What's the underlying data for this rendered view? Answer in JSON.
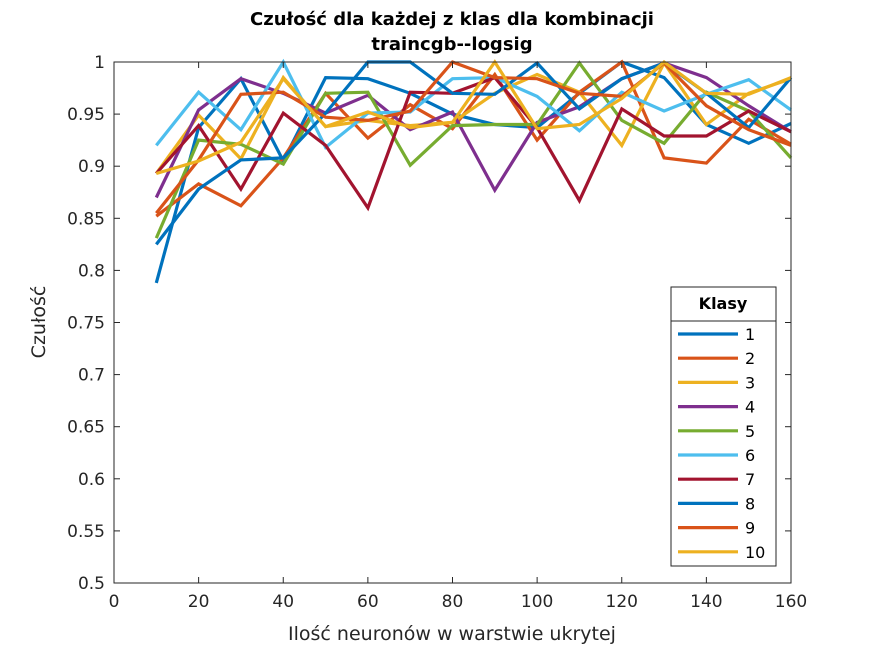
{
  "chart_data": {
    "type": "line",
    "title": [
      "Czułość dla każdej z klas dla kombinacji",
      "traincgb--logsig"
    ],
    "xlabel": "Ilość neuronów w warstwie ukrytej",
    "ylabel": "Czułość",
    "xlim": [
      0,
      160
    ],
    "ylim": [
      0.5,
      1
    ],
    "xticks": [
      "0",
      "20",
      "40",
      "60",
      "80",
      "100",
      "120",
      "140",
      "160"
    ],
    "yticks": [
      "0.5",
      "0.55",
      "0.6",
      "0.65",
      "0.7",
      "0.75",
      "0.8",
      "0.85",
      "0.9",
      "0.95",
      "1"
    ],
    "grid": false,
    "legend": {
      "title": "Klasy",
      "placement": "lower-right"
    },
    "x": [
      10,
      20,
      30,
      40,
      50,
      60,
      70,
      80,
      90,
      100,
      110,
      120,
      130,
      140,
      150,
      160
    ],
    "series": [
      {
        "name": "1",
        "color": "#0072BD",
        "values": [
          0.788,
          0.937,
          0.984,
          0.905,
          0.985,
          0.984,
          0.97,
          0.95,
          0.94,
          0.937,
          0.97,
          1.0,
          0.985,
          0.94,
          0.922,
          0.941
        ]
      },
      {
        "name": "2",
        "color": "#D95319",
        "values": [
          0.852,
          0.883,
          0.862,
          0.908,
          0.97,
          0.927,
          0.959,
          0.936,
          0.988,
          0.925,
          0.971,
          1.0,
          0.908,
          0.903,
          0.945,
          0.921
        ]
      },
      {
        "name": "3",
        "color": "#EDB120",
        "values": [
          0.893,
          0.949,
          0.907,
          0.985,
          0.938,
          0.944,
          0.939,
          0.942,
          0.97,
          0.988,
          0.971,
          0.92,
          0.999,
          0.94,
          0.97,
          0.984
        ]
      },
      {
        "name": "4",
        "color": "#7E2F8E",
        "values": [
          0.87,
          0.954,
          0.984,
          0.97,
          0.951,
          0.968,
          0.935,
          0.952,
          0.877,
          0.942,
          0.957,
          0.984,
          0.999,
          0.985,
          0.958,
          0.933
        ]
      },
      {
        "name": "5",
        "color": "#77AC30",
        "values": [
          0.831,
          0.925,
          0.921,
          0.902,
          0.97,
          0.971,
          0.901,
          0.939,
          0.94,
          0.94,
          0.999,
          0.944,
          0.922,
          0.971,
          0.953,
          0.908
        ]
      },
      {
        "name": "6",
        "color": "#4DBEEE",
        "values": [
          0.92,
          0.971,
          0.935,
          1.0,
          0.918,
          0.951,
          0.952,
          0.984,
          0.985,
          0.967,
          0.934,
          0.971,
          0.953,
          0.969,
          0.983,
          0.954
        ]
      },
      {
        "name": "7",
        "color": "#A2142F",
        "values": [
          0.893,
          0.939,
          0.878,
          0.951,
          0.92,
          0.86,
          0.971,
          0.97,
          0.985,
          0.937,
          0.867,
          0.955,
          0.929,
          0.929,
          0.953,
          0.933
        ]
      },
      {
        "name": "8",
        "color": "#0072BD",
        "values": [
          0.825,
          0.878,
          0.906,
          0.908,
          0.951,
          1.0,
          1.0,
          0.97,
          0.969,
          0.999,
          0.955,
          0.984,
          0.999,
          0.97,
          0.937,
          0.985
        ]
      },
      {
        "name": "9",
        "color": "#D95319",
        "values": [
          0.855,
          0.906,
          0.969,
          0.971,
          0.947,
          0.944,
          0.953,
          1.0,
          0.985,
          0.984,
          0.97,
          0.967,
          0.999,
          0.958,
          0.935,
          0.92
        ]
      },
      {
        "name": "10",
        "color": "#EDB120",
        "values": [
          0.893,
          0.905,
          0.923,
          0.984,
          0.938,
          0.952,
          0.937,
          0.942,
          1.0,
          0.936,
          0.94,
          0.965,
          1.0,
          0.97,
          0.969,
          0.985
        ]
      }
    ]
  }
}
